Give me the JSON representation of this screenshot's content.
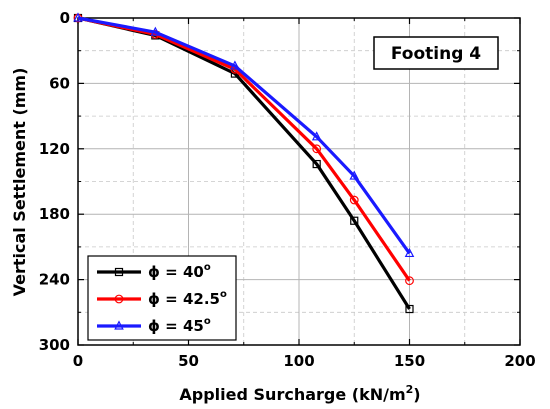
{
  "chart_data": {
    "type": "line",
    "annotation": "Footing 4",
    "xlabel": "Applied Surcharge (kN/m",
    "xlabel_sup": "2",
    "xlabel_end": ")",
    "ylabel": "Vertical Settlement (mm)",
    "xlim": [
      0,
      200
    ],
    "ylim": [
      0,
      300
    ],
    "y_inverted": true,
    "x_ticks": [
      0,
      50,
      100,
      150,
      200
    ],
    "y_ticks": [
      0,
      60,
      120,
      180,
      240,
      300
    ],
    "grid": true,
    "legend_position": "bottom-left",
    "series": [
      {
        "name": "ϕ = 40",
        "name_sup": "o",
        "color": "#000000",
        "marker": "square",
        "x": [
          0,
          35,
          71,
          108,
          125,
          150
        ],
        "y": [
          0,
          16,
          51,
          134,
          186,
          267
        ]
      },
      {
        "name": "ϕ = 42.5",
        "name_sup": "o",
        "color": "#ff0000",
        "marker": "circle",
        "x": [
          0,
          35,
          71,
          108,
          125,
          150
        ],
        "y": [
          0,
          15,
          47,
          120,
          167,
          241
        ]
      },
      {
        "name": "ϕ = 45",
        "name_sup": "o",
        "color": "#1a1aff",
        "marker": "triangle",
        "x": [
          0,
          35,
          71,
          108,
          125,
          150
        ],
        "y": [
          0,
          13,
          44,
          109,
          145,
          216
        ]
      }
    ]
  }
}
